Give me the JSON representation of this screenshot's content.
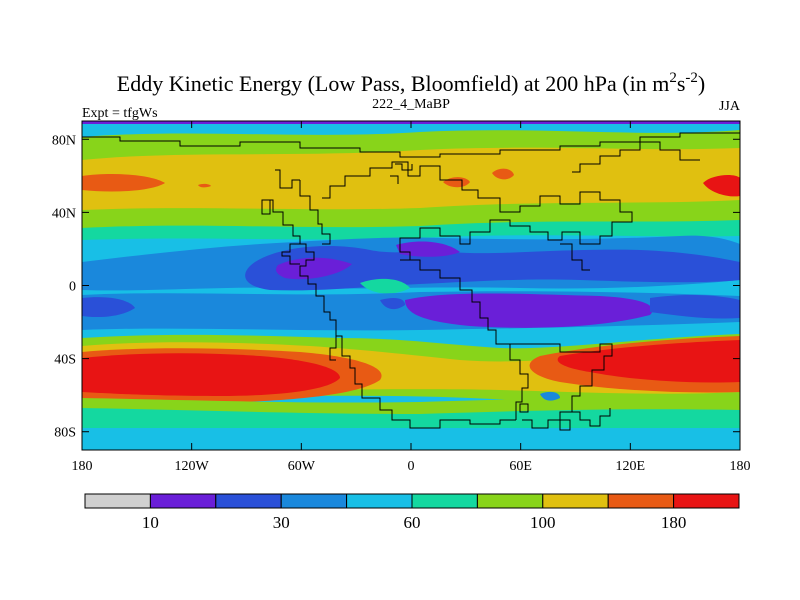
{
  "chart_data": {
    "type": "heatmap",
    "title": "Eddy Kinetic Energy (Low Pass, Bloomfield) at 200 hPa (in m",
    "title_units": {
      "base": "m",
      "exp1": "2",
      "mid": "s",
      "exp2": "-2",
      "close": ")"
    },
    "left_label": "Expt = tfgWs",
    "center_label": "222_4_MaBP",
    "right_label": "JJA",
    "x_ticks": [
      {
        "value": -180,
        "label": "180"
      },
      {
        "value": -120,
        "label": "120W"
      },
      {
        "value": -60,
        "label": "60W"
      },
      {
        "value": 0,
        "label": "0"
      },
      {
        "value": 60,
        "label": "60E"
      },
      {
        "value": 120,
        "label": "120E"
      },
      {
        "value": 180,
        "label": "180"
      }
    ],
    "y_ticks": [
      {
        "value": 80,
        "label": "80N"
      },
      {
        "value": 40,
        "label": "40N"
      },
      {
        "value": 0,
        "label": "0"
      },
      {
        "value": -40,
        "label": "40S"
      },
      {
        "value": -80,
        "label": "80S"
      }
    ],
    "xlim": [
      -180,
      180
    ],
    "ylim": [
      -90,
      90
    ],
    "colorbar": {
      "levels": [
        0,
        10,
        20,
        30,
        45,
        60,
        80,
        100,
        120,
        150,
        180,
        250
      ],
      "colors": [
        "#d0d0d0",
        "#6a1fd8",
        "#2a50d8",
        "#1a88dc",
        "#18bfe6",
        "#14d8a0",
        "#88d41a",
        "#e0c010",
        "#e85a14",
        "#e81414"
      ],
      "tick_labels": [
        {
          "after_box": 1,
          "label": "10"
        },
        {
          "after_box": 3,
          "label": "30"
        },
        {
          "after_box": 5,
          "label": "60"
        },
        {
          "after_box": 7,
          "label": "100"
        },
        {
          "after_box": 9,
          "label": "180"
        }
      ]
    },
    "grid": false,
    "value_bands": [
      {
        "lat_range": [
          90,
          80
        ],
        "approx_value": 50
      },
      {
        "lat_range": [
          80,
          70
        ],
        "approx_value": 100
      },
      {
        "lat_range": [
          70,
          60
        ],
        "approx_value": 110
      },
      {
        "lat_range": [
          60,
          45
        ],
        "approx_value": 130
      },
      {
        "lat_range": [
          45,
          35
        ],
        "approx_value": 90
      },
      {
        "lat_range": [
          35,
          25
        ],
        "approx_value": 60
      },
      {
        "lat_range": [
          25,
          10
        ],
        "approx_value": 25
      },
      {
        "lat_range": [
          10,
          -5
        ],
        "approx_value": 45
      },
      {
        "lat_range": [
          -5,
          -25
        ],
        "approx_value": 20
      },
      {
        "lat_range": [
          -25,
          -35
        ],
        "approx_value": 70
      },
      {
        "lat_range": [
          -35,
          -45
        ],
        "approx_value": 110
      },
      {
        "lat_range": [
          -45,
          -60
        ],
        "approx_value": 190
      },
      {
        "lat_range": [
          -60,
          -70
        ],
        "approx_value": 130
      },
      {
        "lat_range": [
          -70,
          -80
        ],
        "approx_value": 70
      },
      {
        "lat_range": [
          -80,
          -90
        ],
        "approx_value": 50
      }
    ]
  }
}
